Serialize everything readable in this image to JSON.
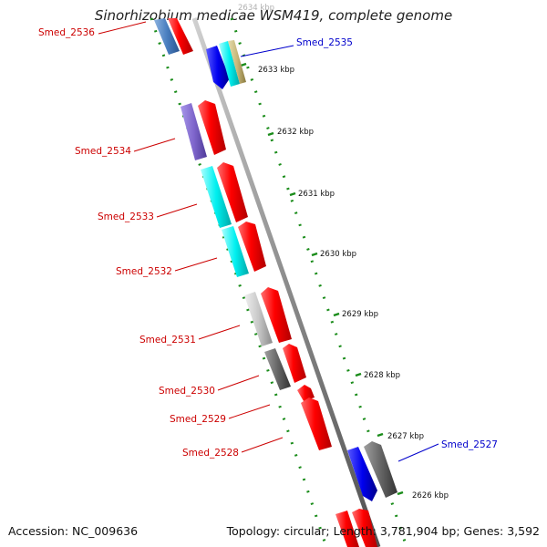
{
  "map": {
    "title": "Sinorhizobium medicae WSM419, complete genome",
    "accession": "Accession: NC_009636",
    "summary": "Topology: circular; Length: 3,781,904 bp; Genes: 3,592"
  },
  "colors": {
    "backbone": "#8c8c8c",
    "ring_dots": "#1a8c1a",
    "label_red": "#cc0000",
    "label_blue": "#0000cc",
    "tick_text": "#111111"
  },
  "scale_ticks": [
    "2634 kbp",
    "2633 kbp",
    "2632 kbp",
    "2631 kbp",
    "2630 kbp",
    "2629 kbp",
    "2628 kbp",
    "2627 kbp",
    "2626 kbp"
  ],
  "gene_labels": [
    {
      "text": "Smed_2536",
      "color": "red"
    },
    {
      "text": "Smed_2535",
      "color": "blue"
    },
    {
      "text": "Smed_2534",
      "color": "red"
    },
    {
      "text": "Smed_2533",
      "color": "red"
    },
    {
      "text": "Smed_2532",
      "color": "red"
    },
    {
      "text": "Smed_2531",
      "color": "red"
    },
    {
      "text": "Smed_2530",
      "color": "red"
    },
    {
      "text": "Smed_2529",
      "color": "red"
    },
    {
      "text": "Smed_2528",
      "color": "red"
    },
    {
      "text": "Smed_2527",
      "color": "blue"
    }
  ],
  "feature_colors": [
    "#4a7fc0",
    "#ff0000",
    "#0000ee",
    "#00e5e5",
    "#c8b87a",
    "#7f66cc",
    "#c0c0c0",
    "#707070",
    "#555555"
  ]
}
